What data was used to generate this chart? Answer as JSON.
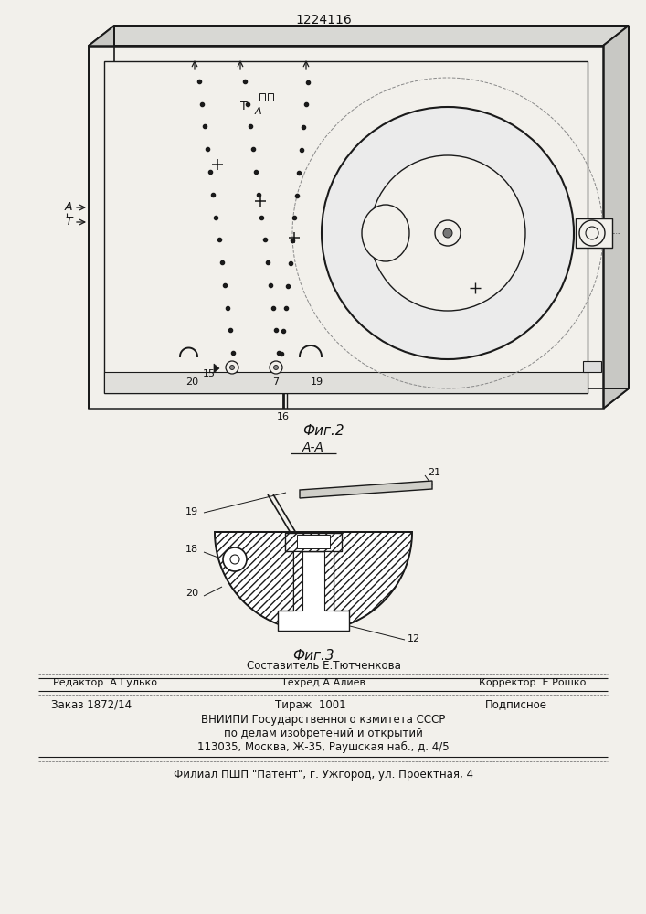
{
  "patent_number": "1224116",
  "fig2_label": "Фиг.2",
  "fig3_label": "Фиг.3",
  "aa_label": "А-А",
  "bg_color": "#f2f0eb",
  "line_color": "#1a1a1a",
  "text_color": "#111111",
  "author_line": "Составитель Е.Тютченкова",
  "editor_text": "Редактор  А.Гулько",
  "tekhred_text": "Техред А.Алиев",
  "korrektor_text": "Корректор  Е.Рошко",
  "order_text": "Заказ 1872/14",
  "tirazh_text": "Тираж  1001",
  "podpisnoe_text": "Подписное",
  "org_line1": "ВНИИПИ Государственного кзмитета СССР",
  "org_line2": "по делам изобретений и открытий",
  "org_line3": "113035, Москва, Ж-35, Раушская наб., д. 4/5",
  "branch_line": "Филиал ПШП \"Патент\", г. Ужгород, ул. Проектная, 4"
}
